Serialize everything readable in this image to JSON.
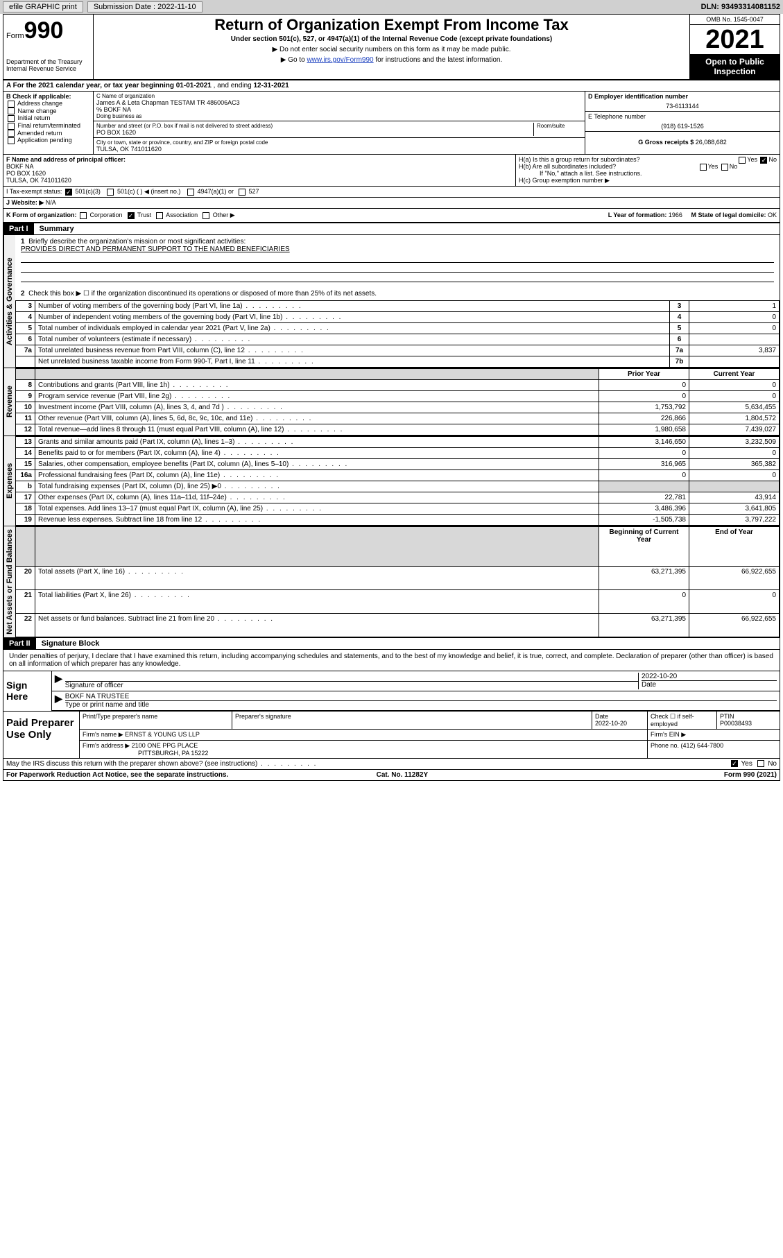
{
  "topbar": {
    "efile": "efile GRAPHIC print",
    "submission_label": "Submission Date : 2022-11-10",
    "dln": "DLN: 93493314081152"
  },
  "header": {
    "form_word": "Form",
    "form_number": "990",
    "dept": "Department of the Treasury\nInternal Revenue Service",
    "title": "Return of Organization Exempt From Income Tax",
    "subtitle": "Under section 501(c), 527, or 4947(a)(1) of the Internal Revenue Code (except private foundations)",
    "note1": "▶ Do not enter social security numbers on this form as it may be made public.",
    "note2_pre": "▶ Go to ",
    "note2_link": "www.irs.gov/Form990",
    "note2_post": " for instructions and the latest information.",
    "omb": "OMB No. 1545-0047",
    "year": "2021",
    "open": "Open to Public Inspection"
  },
  "period": {
    "label": "A For the 2021 calendar year, or tax year beginning ",
    "start": "01-01-2021",
    "mid": " , and ending ",
    "end": "12-31-2021"
  },
  "section_b": {
    "heading": "B Check if applicable:",
    "items": [
      "Address change",
      "Name change",
      "Initial return",
      "Final return/terminated",
      "Amended return",
      "Application pending"
    ]
  },
  "section_c": {
    "name_label": "C Name of organization",
    "name": "James A & Leta Chapman TESTAM TR 486006AC3",
    "care_of": "% BOKF NA",
    "dba_label": "Doing business as",
    "addr_label": "Number and street (or P.O. box if mail is not delivered to street address)",
    "room_label": "Room/suite",
    "addr": "PO BOX 1620",
    "city_label": "City or town, state or province, country, and ZIP or foreign postal code",
    "city": "TULSA, OK  741011620"
  },
  "section_d": {
    "ein_label": "D Employer identification number",
    "ein": "73-6113144",
    "phone_label": "E Telephone number",
    "phone": "(918) 619-1526",
    "gross_label": "G Gross receipts $ ",
    "gross": "26,088,682"
  },
  "section_f": {
    "label": "F Name and address of principal officer:",
    "name": "BOKF NA",
    "addr1": "PO BOX 1620",
    "addr2": "TULSA, OK  741011620"
  },
  "section_h": {
    "ha": "H(a)  Is this a group return for subordinates?",
    "hb": "H(b)  Are all subordinates included?",
    "hb_note": "If \"No,\" attach a list. See instructions.",
    "hc": "H(c)  Group exemption number ▶",
    "yes": "Yes",
    "no": "No"
  },
  "row_i": {
    "label": "I   Tax-exempt status:",
    "opts": [
      "501(c)(3)",
      "501(c) (  ) ◀ (insert no.)",
      "4947(a)(1) or",
      "527"
    ]
  },
  "row_j": {
    "label": "J   Website: ▶",
    "value": "N/A"
  },
  "row_k": {
    "label": "K Form of organization:",
    "opts": [
      "Corporation",
      "Trust",
      "Association",
      "Other ▶"
    ],
    "l_label": "L Year of formation: ",
    "l_val": "1966",
    "m_label": "M State of legal domicile: ",
    "m_val": "OK"
  },
  "part1": {
    "hdr": "Part I",
    "title": "Summary",
    "q1": "Briefly describe the organization's mission or most significant activities:",
    "mission": "PROVIDES DIRECT AND PERMANENT SUPPORT TO THE NAMED BENEFICIARIES",
    "q2": "Check this box ▶ ☐  if the organization discontinued its operations or disposed of more than 25% of its net assets.",
    "vlabels": {
      "gov": "Activities & Governance",
      "rev": "Revenue",
      "exp": "Expenses",
      "net": "Net Assets or Fund Balances"
    },
    "col_prior": "Prior Year",
    "col_current": "Current Year",
    "col_begin": "Beginning of Current Year",
    "col_end": "End of Year",
    "rows_gov": [
      {
        "n": "3",
        "t": "Number of voting members of the governing body (Part VI, line 1a)",
        "box": "3",
        "v": "1"
      },
      {
        "n": "4",
        "t": "Number of independent voting members of the governing body (Part VI, line 1b)",
        "box": "4",
        "v": "0"
      },
      {
        "n": "5",
        "t": "Total number of individuals employed in calendar year 2021 (Part V, line 2a)",
        "box": "5",
        "v": "0"
      },
      {
        "n": "6",
        "t": "Total number of volunteers (estimate if necessary)",
        "box": "6",
        "v": ""
      },
      {
        "n": "7a",
        "t": "Total unrelated business revenue from Part VIII, column (C), line 12",
        "box": "7a",
        "v": "3,837"
      },
      {
        "n": "",
        "t": "Net unrelated business taxable income from Form 990-T, Part I, line 11",
        "box": "7b",
        "v": ""
      }
    ],
    "rows_rev": [
      {
        "n": "8",
        "t": "Contributions and grants (Part VIII, line 1h)",
        "p": "0",
        "c": "0"
      },
      {
        "n": "9",
        "t": "Program service revenue (Part VIII, line 2g)",
        "p": "0",
        "c": "0"
      },
      {
        "n": "10",
        "t": "Investment income (Part VIII, column (A), lines 3, 4, and 7d )",
        "p": "1,753,792",
        "c": "5,634,455"
      },
      {
        "n": "11",
        "t": "Other revenue (Part VIII, column (A), lines 5, 6d, 8c, 9c, 10c, and 11e)",
        "p": "226,866",
        "c": "1,804,572"
      },
      {
        "n": "12",
        "t": "Total revenue—add lines 8 through 11 (must equal Part VIII, column (A), line 12)",
        "p": "1,980,658",
        "c": "7,439,027"
      }
    ],
    "rows_exp": [
      {
        "n": "13",
        "t": "Grants and similar amounts paid (Part IX, column (A), lines 1–3)",
        "p": "3,146,650",
        "c": "3,232,509"
      },
      {
        "n": "14",
        "t": "Benefits paid to or for members (Part IX, column (A), line 4)",
        "p": "0",
        "c": "0"
      },
      {
        "n": "15",
        "t": "Salaries, other compensation, employee benefits (Part IX, column (A), lines 5–10)",
        "p": "316,965",
        "c": "365,382"
      },
      {
        "n": "16a",
        "t": "Professional fundraising fees (Part IX, column (A), line 11e)",
        "p": "0",
        "c": "0"
      },
      {
        "n": "b",
        "t": "Total fundraising expenses (Part IX, column (D), line 25) ▶0",
        "p": "",
        "c": "",
        "shade": true
      },
      {
        "n": "17",
        "t": "Other expenses (Part IX, column (A), lines 11a–11d, 11f–24e)",
        "p": "22,781",
        "c": "43,914"
      },
      {
        "n": "18",
        "t": "Total expenses. Add lines 13–17 (must equal Part IX, column (A), line 25)",
        "p": "3,486,396",
        "c": "3,641,805"
      },
      {
        "n": "19",
        "t": "Revenue less expenses. Subtract line 18 from line 12",
        "p": "-1,505,738",
        "c": "3,797,222"
      }
    ],
    "rows_net": [
      {
        "n": "20",
        "t": "Total assets (Part X, line 16)",
        "p": "63,271,395",
        "c": "66,922,655"
      },
      {
        "n": "21",
        "t": "Total liabilities (Part X, line 26)",
        "p": "0",
        "c": "0"
      },
      {
        "n": "22",
        "t": "Net assets or fund balances. Subtract line 21 from line 20",
        "p": "63,271,395",
        "c": "66,922,655"
      }
    ]
  },
  "part2": {
    "hdr": "Part II",
    "title": "Signature Block",
    "declaration": "Under penalties of perjury, I declare that I have examined this return, including accompanying schedules and statements, and to the best of my knowledge and belief, it is true, correct, and complete. Declaration of preparer (other than officer) is based on all information of which preparer has any knowledge.",
    "sign_here": "Sign Here",
    "sig_officer": "Signature of officer",
    "sig_date": "2022-10-20",
    "date_label": "Date",
    "officer_name": "BOKF NA TRUSTEE",
    "type_name": "Type or print name and title",
    "paid": "Paid Preparer Use Only",
    "prep_name_label": "Print/Type preparer's name",
    "prep_sig_label": "Preparer's signature",
    "prep_date": "2022-10-20",
    "check_self": "Check ☐ if self-employed",
    "ptin_label": "PTIN",
    "ptin": "P00038493",
    "firm_name_label": "Firm's name   ▶",
    "firm_name": "ERNST & YOUNG US LLP",
    "firm_ein_label": "Firm's EIN ▶",
    "firm_addr_label": "Firm's address ▶",
    "firm_addr1": "2100 ONE PPG PLACE",
    "firm_addr2": "PITTSBURGH, PA  15222",
    "firm_phone_label": "Phone no. ",
    "firm_phone": "(412) 644-7800",
    "may_irs": "May the IRS discuss this return with the preparer shown above? (see instructions)",
    "paperwork": "For Paperwork Reduction Act Notice, see the separate instructions.",
    "cat": "Cat. No. 11282Y",
    "form_footer": "Form 990 (2021)"
  },
  "colors": {
    "link": "#1a3fbf",
    "shade": "#d8d8d8",
    "topbar_bg": "#d0d0d0"
  }
}
